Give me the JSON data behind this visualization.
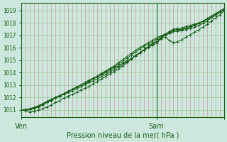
{
  "title": "",
  "xlabel": "Pression niveau de la mer( hPa )",
  "ylabel": "",
  "ylim": [
    1010.4,
    1019.6
  ],
  "xlim": [
    0,
    48
  ],
  "yticks": [
    1011,
    1012,
    1013,
    1014,
    1015,
    1016,
    1017,
    1018,
    1019
  ],
  "xtick_positions": [
    0,
    32,
    48
  ],
  "xtick_labels": [
    "Ven",
    "Sam",
    ""
  ],
  "vline_x": 32,
  "bg_color": "#cce8dc",
  "line_color": "#1a5c1a",
  "grid_color_v": "#cc9999",
  "grid_color_h": "#99cc99",
  "n_v_gridlines": 48,
  "lines": [
    [
      1011.0,
      1011.05,
      1011.1,
      1011.2,
      1011.35,
      1011.5,
      1011.7,
      1011.85,
      1012.0,
      1012.15,
      1012.3,
      1012.5,
      1012.65,
      1012.8,
      1013.0,
      1013.15,
      1013.3,
      1013.5,
      1013.65,
      1013.85,
      1014.0,
      1014.2,
      1014.4,
      1014.55,
      1014.75,
      1014.95,
      1015.15,
      1015.4,
      1015.6,
      1015.8,
      1016.0,
      1016.2,
      1016.35,
      1016.7,
      1017.05,
      1017.3,
      1017.5,
      1017.55,
      1017.4,
      1017.45,
      1017.55,
      1017.65,
      1017.8,
      1017.95,
      1018.15,
      1018.4,
      1018.6,
      1018.85,
      1019.05
    ],
    [
      1011.0,
      1011.0,
      1011.05,
      1011.1,
      1011.25,
      1011.4,
      1011.6,
      1011.75,
      1011.95,
      1012.1,
      1012.25,
      1012.4,
      1012.55,
      1012.7,
      1012.85,
      1013.05,
      1013.2,
      1013.35,
      1013.5,
      1013.7,
      1013.85,
      1014.05,
      1014.25,
      1014.45,
      1014.65,
      1014.9,
      1015.1,
      1015.35,
      1015.55,
      1015.8,
      1016.05,
      1016.3,
      1016.5,
      1016.75,
      1016.85,
      1016.6,
      1016.4,
      1016.5,
      1016.65,
      1016.85,
      1017.05,
      1017.25,
      1017.45,
      1017.65,
      1017.9,
      1018.15,
      1018.4,
      1018.65,
      1018.95
    ],
    [
      1011.0,
      1011.0,
      1011.1,
      1011.2,
      1011.3,
      1011.45,
      1011.65,
      1011.8,
      1012.0,
      1012.15,
      1012.3,
      1012.5,
      1012.65,
      1012.8,
      1013.0,
      1013.15,
      1013.35,
      1013.55,
      1013.7,
      1013.9,
      1014.1,
      1014.3,
      1014.5,
      1014.7,
      1014.9,
      1015.15,
      1015.4,
      1015.65,
      1015.9,
      1016.1,
      1016.3,
      1016.5,
      1016.7,
      1016.9,
      1017.1,
      1017.25,
      1017.4,
      1017.5,
      1017.6,
      1017.7,
      1017.8,
      1017.9,
      1018.0,
      1018.15,
      1018.35,
      1018.55,
      1018.75,
      1018.95,
      1019.15
    ],
    [
      1011.0,
      1010.95,
      1010.85,
      1010.9,
      1011.0,
      1011.1,
      1011.25,
      1011.4,
      1011.6,
      1011.75,
      1011.95,
      1012.1,
      1012.25,
      1012.4,
      1012.6,
      1012.75,
      1012.9,
      1013.1,
      1013.3,
      1013.5,
      1013.7,
      1013.9,
      1014.1,
      1014.3,
      1014.55,
      1014.8,
      1015.1,
      1015.35,
      1015.6,
      1015.85,
      1016.1,
      1016.35,
      1016.55,
      1016.8,
      1017.0,
      1017.15,
      1017.3,
      1017.4,
      1017.5,
      1017.6,
      1017.7,
      1017.85,
      1017.95,
      1018.1,
      1018.3,
      1018.5,
      1018.7,
      1018.9,
      1019.1
    ],
    [
      1011.0,
      1011.0,
      1011.05,
      1011.15,
      1011.3,
      1011.45,
      1011.65,
      1011.8,
      1012.0,
      1012.15,
      1012.3,
      1012.5,
      1012.65,
      1012.85,
      1013.0,
      1013.2,
      1013.4,
      1013.55,
      1013.75,
      1013.95,
      1014.15,
      1014.35,
      1014.55,
      1014.8,
      1015.05,
      1015.3,
      1015.55,
      1015.8,
      1016.0,
      1016.2,
      1016.4,
      1016.6,
      1016.8,
      1016.95,
      1017.1,
      1017.2,
      1017.3,
      1017.35,
      1017.45,
      1017.55,
      1017.65,
      1017.8,
      1017.95,
      1018.1,
      1018.3,
      1018.5,
      1018.7,
      1018.9,
      1019.1
    ]
  ]
}
